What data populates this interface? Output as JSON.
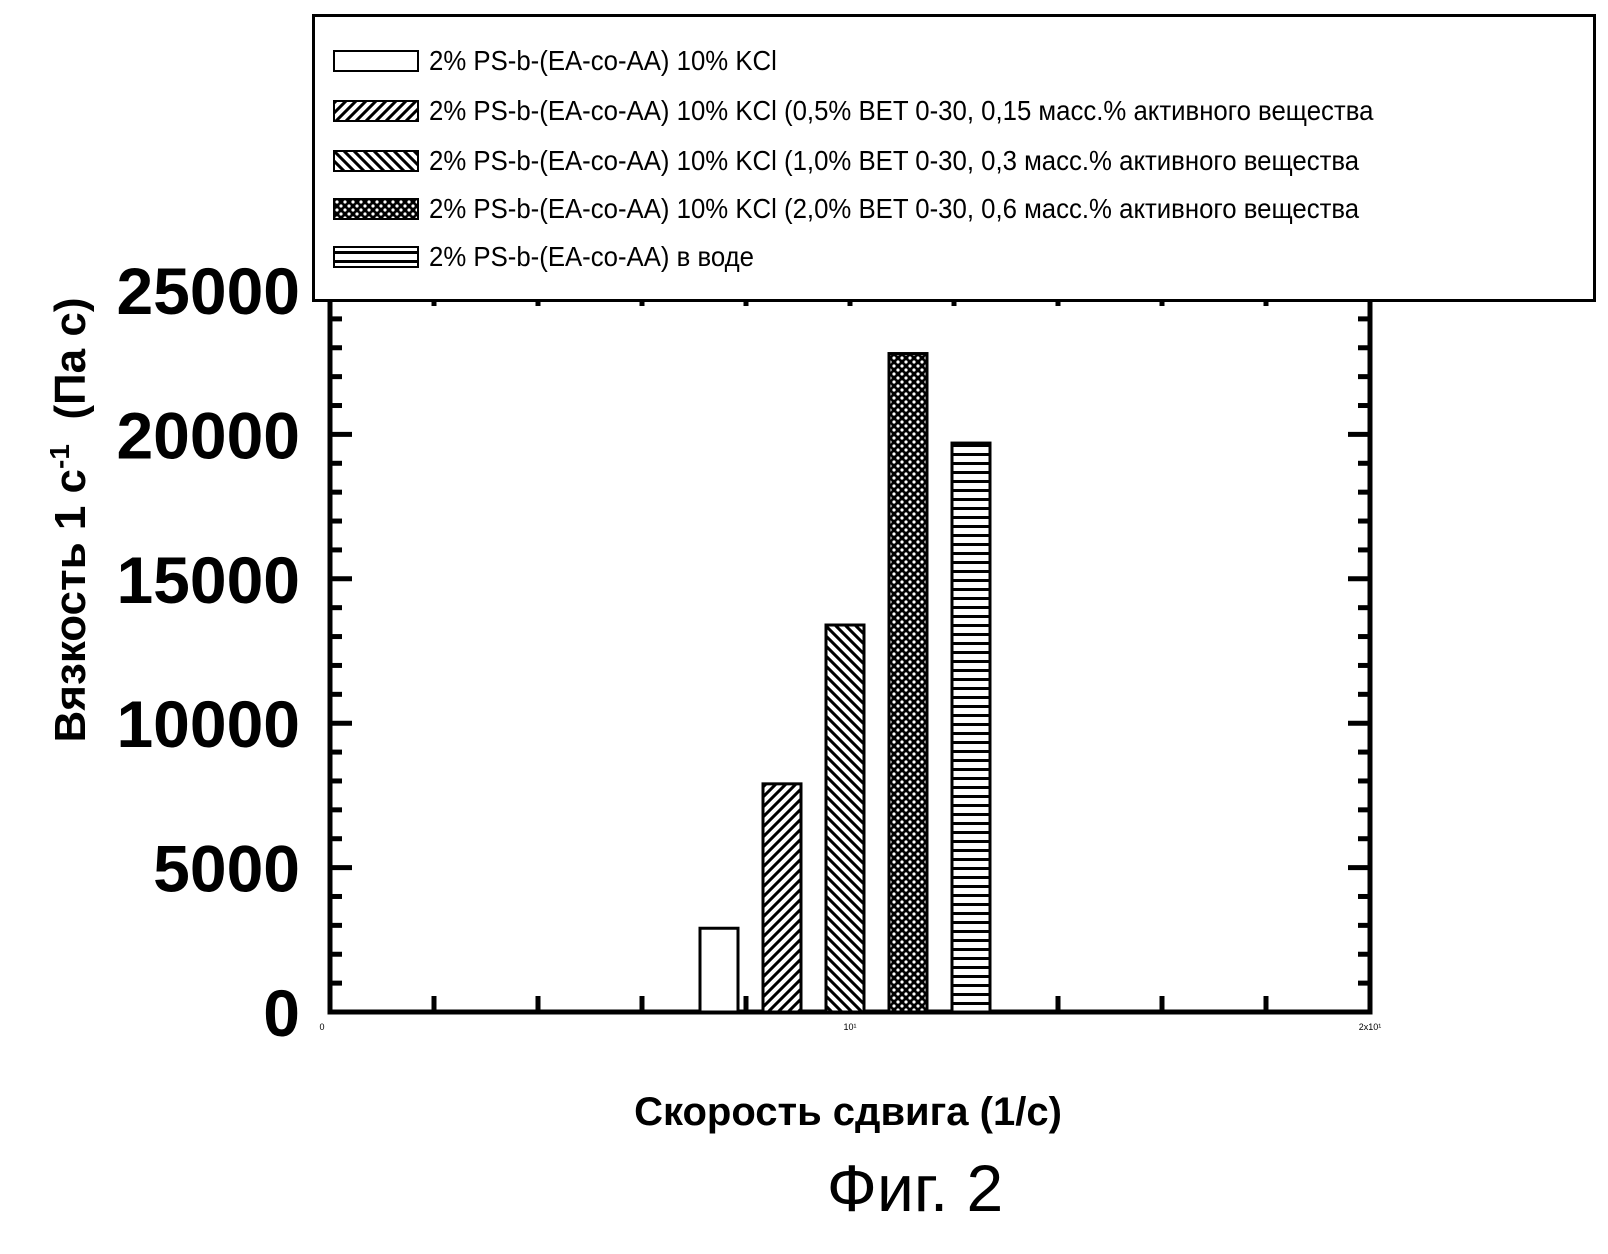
{
  "caption": "Фиг. 2",
  "chart_data": {
    "type": "bar",
    "xlabel": "Скорость сдвига (1/с)",
    "ylabel_main": "Вязкость 1 с",
    "ylabel_sup": "-1",
    "ylabel_unit": "(Па с)",
    "ylim": [
      0,
      25000
    ],
    "yticks": [
      0,
      5000,
      10000,
      15000,
      20000,
      25000
    ],
    "ytick_labels": [
      "0",
      "5000",
      "10000",
      "15000",
      "20000",
      "25000"
    ],
    "xtick_labels": [
      "0",
      "10¹",
      "2x10¹"
    ],
    "legend_position": "top",
    "series": [
      {
        "name": "2% PS-b-(EA-co-AA) 10% KCl",
        "pattern": "none",
        "value": 2900
      },
      {
        "name": "2% PS-b-(EA-co-AA) 10% KCl (0,5% BET 0-30, 0,15 масс.% активного вещества",
        "pattern": "diagonal-up",
        "value": 7900
      },
      {
        "name": "2% PS-b-(EA-co-AA) 10% KCl (1,0% BET 0-30, 0,3 масс.% активного вещества",
        "pattern": "diagonal-down",
        "value": 13400
      },
      {
        "name": "2% PS-b-(EA-co-AA) 10% KCl (2,0% BET 0-30, 0,6 масс.% активного вещества",
        "pattern": "crosshatch",
        "value": 22800
      },
      {
        "name": "2% PS-b-(EA-co-AA) в воде",
        "pattern": "horizontal",
        "value": 19700
      }
    ]
  }
}
